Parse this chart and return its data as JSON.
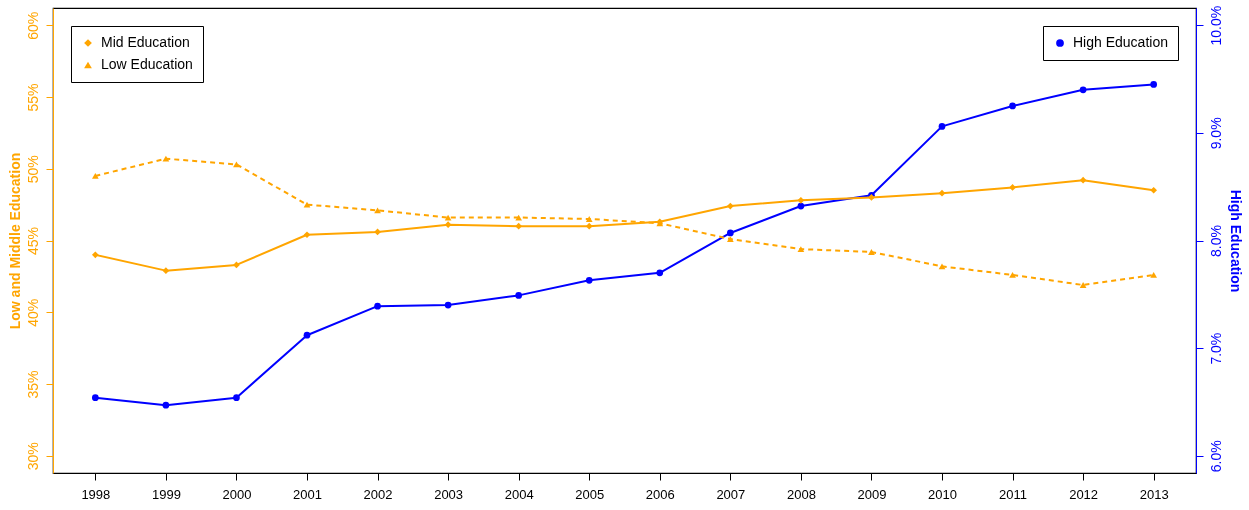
{
  "chart_data": {
    "type": "line",
    "ylabel": "Low and Middle Education",
    "y2label": "High Education",
    "categories": [
      "1998",
      "1999",
      "2000",
      "2001",
      "2002",
      "2003",
      "2004",
      "2005",
      "2006",
      "2007",
      "2008",
      "2009",
      "2010",
      "2011",
      "2012",
      "2013"
    ],
    "series": [
      {
        "name": "Mid Education",
        "color": "#ffa500",
        "marker": "diamond",
        "line_style": "solid",
        "values": [
          44.0,
          42.9,
          43.3,
          45.4,
          45.6,
          46.1,
          46.0,
          46.0,
          46.3,
          47.4,
          47.8,
          48.0,
          48.3,
          48.7,
          49.2,
          48.5
        ]
      },
      {
        "name": "Low Education",
        "color": "#ffa500",
        "marker": "triangle",
        "line_style": "dashed",
        "values": [
          49.5,
          50.7,
          50.3,
          47.5,
          47.1,
          46.6,
          46.6,
          46.5,
          46.2,
          45.1,
          44.4,
          44.2,
          43.2,
          42.6,
          41.9,
          42.6
        ]
      },
      {
        "name": "High Education",
        "color": "#0000ff",
        "marker": "circle",
        "line_style": "solid",
        "axis": "y2",
        "values": [
          6.54,
          6.47,
          6.54,
          7.12,
          7.39,
          7.4,
          7.49,
          7.63,
          7.7,
          8.07,
          8.32,
          8.42,
          9.06,
          9.25,
          9.4,
          9.45
        ]
      }
    ],
    "ylim": [
      28.8,
      61.2
    ],
    "yticks": [
      {
        "value": 30,
        "label": "30%"
      },
      {
        "value": 35,
        "label": "35%"
      },
      {
        "value": 40,
        "label": "40%"
      },
      {
        "value": 45,
        "label": "45%"
      },
      {
        "value": 50,
        "label": "50%"
      },
      {
        "value": 55,
        "label": "55%"
      },
      {
        "value": 60,
        "label": "60%"
      }
    ],
    "y2lim": [
      5.84,
      10.16
    ],
    "y2ticks": [
      {
        "value": 6,
        "label": "6.0%"
      },
      {
        "value": 7,
        "label": "7.0%"
      },
      {
        "value": 8,
        "label": "8.0%"
      },
      {
        "value": 9,
        "label": "9.0%"
      },
      {
        "value": 10,
        "label": "10.0%"
      }
    ],
    "legend": "top",
    "grid": false
  }
}
